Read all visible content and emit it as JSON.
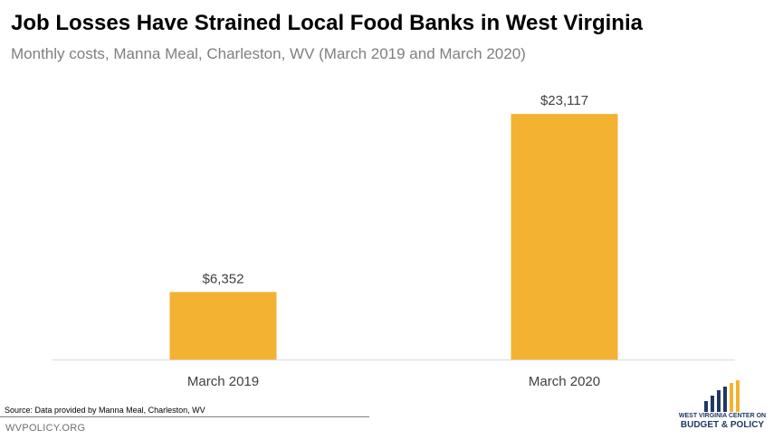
{
  "header": {
    "title": "Job Losses Have Strained Local Food Banks in West Virginia",
    "subtitle": "Monthly costs, Manna Meal, Charleston, WV (March 2019 and March 2020)"
  },
  "footer": {
    "source": "Source: Data provided by Manna Meal, Charleston, WV",
    "site": "WVPOLICY.ORG"
  },
  "logo": {
    "line1": "WEST VIRGINIA CENTER ON",
    "line2": "BUDGET & POLICY"
  },
  "colors": {
    "bar": "#f4b233",
    "axis": "#d9d9d9",
    "logo_navy": "#1f3864",
    "logo_gold": "#f4b233"
  },
  "chart_data": {
    "type": "bar",
    "categories": [
      "March 2019",
      "March 2020"
    ],
    "values": [
      6352,
      23117
    ],
    "data_labels": [
      "$6,352",
      "$23,117"
    ],
    "title": "Job Losses Have Strained Local Food Banks in West Virginia",
    "subtitle": "Monthly costs, Manna Meal, Charleston, WV (March 2019 and March 2020)",
    "xlabel": "",
    "ylabel": "",
    "ylim": [
      0,
      25000
    ],
    "grid": false,
    "legend": "none"
  }
}
